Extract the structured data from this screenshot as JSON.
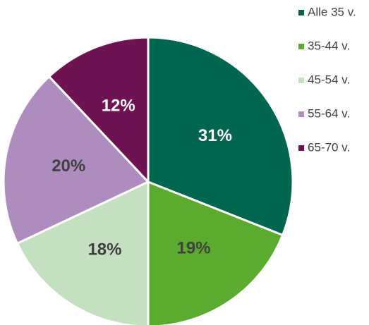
{
  "chart_data": {
    "type": "pie",
    "categories": [
      "Alle 35 v.",
      "35-44 v.",
      "45-54 v.",
      "55-64 v.",
      "65-70 v."
    ],
    "values": [
      31,
      19,
      18,
      20,
      12
    ],
    "value_labels": [
      "31%",
      "19%",
      "18%",
      "20%",
      "12%"
    ],
    "colors": [
      "#00664f",
      "#5aab2e",
      "#c5e0c0",
      "#ae8cc0",
      "#6e1252"
    ],
    "label_colors": [
      "#ffffff",
      "#404040",
      "#404040",
      "#404040",
      "#ffffff"
    ],
    "legend": "right"
  }
}
